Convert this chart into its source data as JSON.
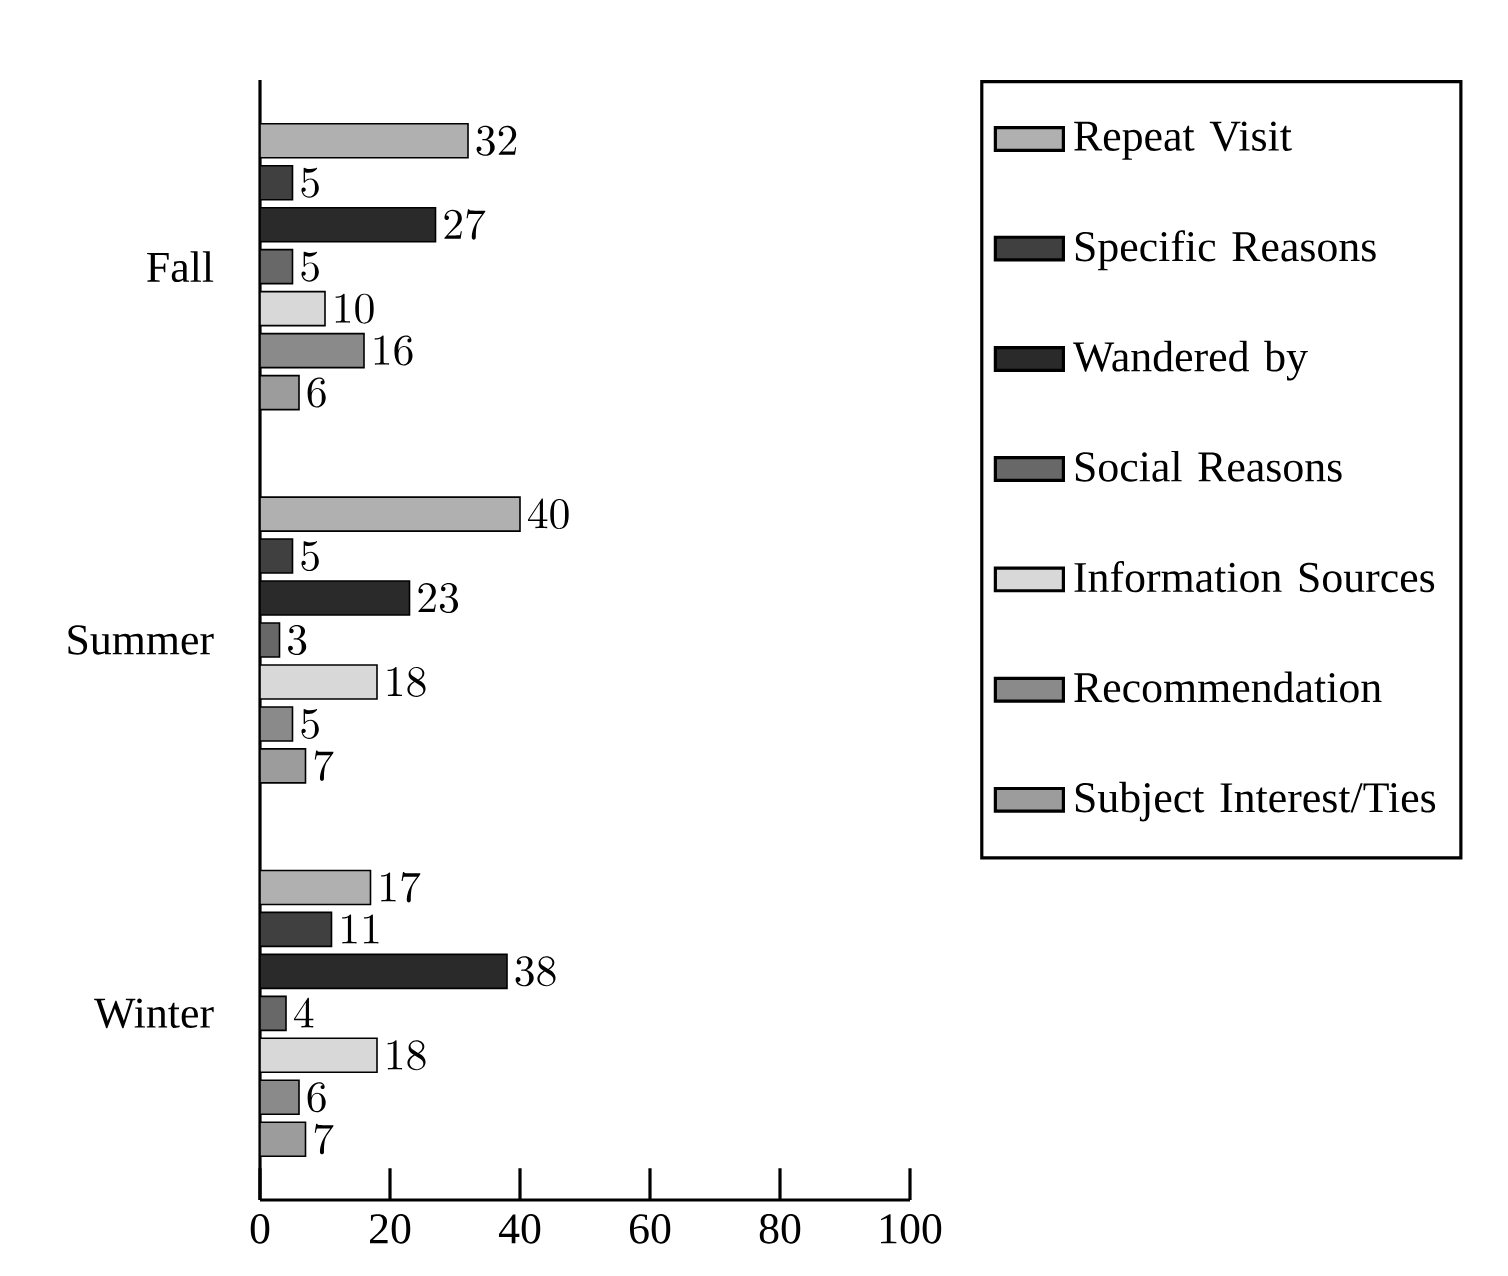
{
  "chart_data": {
    "type": "bar",
    "orientation": "horizontal",
    "categories": [
      "Fall",
      "Summer",
      "Winter"
    ],
    "series": [
      {
        "name": "Repeat Visit",
        "color": "#b0b0b0",
        "values": [
          32,
          40,
          17
        ]
      },
      {
        "name": "Specific Reasons",
        "color": "#404040",
        "values": [
          5,
          5,
          11
        ]
      },
      {
        "name": "Wandered by",
        "color": "#2a2a2a",
        "values": [
          27,
          23,
          38
        ]
      },
      {
        "name": "Social Reasons",
        "color": "#686868",
        "values": [
          5,
          3,
          4
        ]
      },
      {
        "name": "Information Sources",
        "color": "#d8d8d8",
        "values": [
          10,
          18,
          18
        ]
      },
      {
        "name": "Recommendation",
        "color": "#8a8a8a",
        "values": [
          16,
          5,
          6
        ]
      },
      {
        "name": "Subject Interest/Ties",
        "color": "#9c9c9c",
        "values": [
          6,
          7,
          7
        ]
      }
    ],
    "xlim": [
      0,
      100
    ],
    "xticks": [
      0,
      20,
      40,
      60,
      80,
      100
    ],
    "data_labels": true,
    "legend": "right",
    "grid": false
  }
}
